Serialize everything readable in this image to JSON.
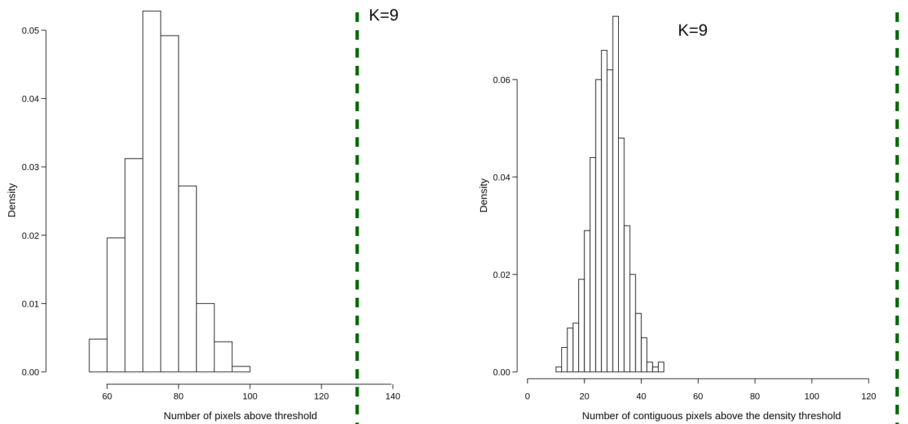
{
  "chart_data": [
    {
      "type": "histogram",
      "xlabel": "Number of pixels above threshold",
      "ylabel": "Density",
      "xlim": [
        55,
        140
      ],
      "ylim": [
        0,
        0.053
      ],
      "xticks": [
        60,
        80,
        100,
        120,
        140
      ],
      "yticks": [
        0.0,
        0.01,
        0.02,
        0.03,
        0.04,
        0.05
      ],
      "ytick_labels": [
        "0.00",
        "0.01",
        "0.02",
        "0.03",
        "0.04",
        "0.05"
      ],
      "bins": [
        {
          "x0": 55,
          "x1": 60,
          "density": 0.0048
        },
        {
          "x0": 60,
          "x1": 65,
          "density": 0.0196
        },
        {
          "x0": 65,
          "x1": 70,
          "density": 0.0312
        },
        {
          "x0": 70,
          "x1": 75,
          "density": 0.0528
        },
        {
          "x0": 75,
          "x1": 80,
          "density": 0.0492
        },
        {
          "x0": 80,
          "x1": 85,
          "density": 0.0272
        },
        {
          "x0": 85,
          "x1": 90,
          "density": 0.01
        },
        {
          "x0": 90,
          "x1": 95,
          "density": 0.0044
        },
        {
          "x0": 95,
          "x1": 100,
          "density": 0.0008
        }
      ],
      "reference_line": {
        "x": 130,
        "color": "#006400",
        "style": "dashed"
      },
      "annotation": "K=9"
    },
    {
      "type": "histogram",
      "xlabel": "Number of contiguous pixels above the density threshold",
      "ylabel": "Density",
      "xlim": [
        0,
        130
      ],
      "ylim": [
        0,
        0.073
      ],
      "xticks": [
        0,
        20,
        40,
        60,
        80,
        100,
        120
      ],
      "yticks": [
        0.0,
        0.02,
        0.04,
        0.06
      ],
      "ytick_labels": [
        "0.00",
        "0.02",
        "0.04",
        "0.06"
      ],
      "bins": [
        {
          "x0": 10,
          "x1": 12,
          "density": 0.001
        },
        {
          "x0": 12,
          "x1": 14,
          "density": 0.005
        },
        {
          "x0": 14,
          "x1": 16,
          "density": 0.009
        },
        {
          "x0": 16,
          "x1": 18,
          "density": 0.01
        },
        {
          "x0": 18,
          "x1": 20,
          "density": 0.019
        },
        {
          "x0": 20,
          "x1": 22,
          "density": 0.029
        },
        {
          "x0": 22,
          "x1": 24,
          "density": 0.044
        },
        {
          "x0": 24,
          "x1": 26,
          "density": 0.06
        },
        {
          "x0": 26,
          "x1": 28,
          "density": 0.066
        },
        {
          "x0": 28,
          "x1": 30,
          "density": 0.062
        },
        {
          "x0": 30,
          "x1": 32,
          "density": 0.073
        },
        {
          "x0": 32,
          "x1": 34,
          "density": 0.048
        },
        {
          "x0": 34,
          "x1": 36,
          "density": 0.03
        },
        {
          "x0": 36,
          "x1": 38,
          "density": 0.02
        },
        {
          "x0": 38,
          "x1": 40,
          "density": 0.012
        },
        {
          "x0": 40,
          "x1": 42,
          "density": 0.007
        },
        {
          "x0": 42,
          "x1": 44,
          "density": 0.002
        },
        {
          "x0": 44,
          "x1": 46,
          "density": 0.001
        },
        {
          "x0": 46,
          "x1": 48,
          "density": 0.002
        }
      ],
      "reference_line": {
        "x": 130,
        "color": "#006400",
        "style": "dashed"
      },
      "annotation": "K=9"
    }
  ]
}
